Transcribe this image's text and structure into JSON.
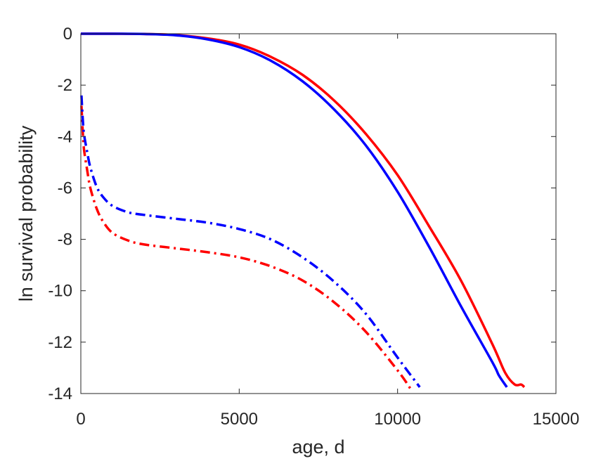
{
  "chart_data": {
    "type": "line",
    "title": "",
    "xlabel": "age, d",
    "ylabel": "ln survival probability",
    "xlim": [
      0,
      15000
    ],
    "ylim": [
      -14,
      0
    ],
    "xticks": [
      0,
      5000,
      10000,
      15000
    ],
    "xtick_labels": [
      "0",
      "5000",
      "10000",
      "15000"
    ],
    "yticks": [
      0,
      -2,
      -4,
      -6,
      -8,
      -10,
      -12,
      -14
    ],
    "ytick_labels": [
      "0",
      "-2",
      "-4",
      "-6",
      "-8",
      "-10",
      "-12",
      "-14"
    ],
    "grid": false,
    "legend": "none",
    "series": [
      {
        "color": "#ff0000",
        "style": "solid",
        "x": [
          0,
          1000,
          2000,
          3000,
          4000,
          5000,
          6000,
          7000,
          8000,
          9000,
          10000,
          11000,
          12000,
          13000,
          13400,
          13700,
          13900,
          14000
        ],
        "y": [
          0,
          0,
          -0.01,
          -0.05,
          -0.18,
          -0.42,
          -0.9,
          -1.6,
          -2.6,
          -3.9,
          -5.5,
          -7.5,
          -9.6,
          -12.1,
          -13.2,
          -13.65,
          -13.65,
          -13.75
        ]
      },
      {
        "color": "#0000ff",
        "style": "solid",
        "x": [
          0,
          1000,
          2000,
          3000,
          4000,
          5000,
          6000,
          7000,
          8000,
          9000,
          10000,
          11000,
          12000,
          13000,
          13200,
          13450
        ],
        "y": [
          0,
          0,
          -0.01,
          -0.06,
          -0.22,
          -0.52,
          -1.05,
          -1.85,
          -2.95,
          -4.35,
          -6.15,
          -8.3,
          -10.6,
          -12.8,
          -13.3,
          -13.75
        ]
      },
      {
        "color": "#ff0000",
        "style": "dashdot",
        "x": [
          20,
          60,
          100,
          200,
          300,
          500,
          700,
          1000,
          1500,
          2000,
          3000,
          4000,
          5000,
          6000,
          7000,
          8000,
          9000,
          10000,
          10400
        ],
        "y": [
          -2.8,
          -3.8,
          -4.5,
          -5.3,
          -6.0,
          -6.8,
          -7.3,
          -7.75,
          -8.05,
          -8.2,
          -8.35,
          -8.5,
          -8.7,
          -9.05,
          -9.6,
          -10.45,
          -11.6,
          -13.1,
          -13.8
        ]
      },
      {
        "color": "#0000ff",
        "style": "dashdot",
        "x": [
          20,
          60,
          100,
          200,
          300,
          500,
          700,
          1000,
          1500,
          2000,
          3000,
          4000,
          5000,
          6000,
          7000,
          8000,
          9000,
          10000,
          10700
        ],
        "y": [
          -2.4,
          -3.3,
          -3.9,
          -4.6,
          -5.2,
          -5.95,
          -6.35,
          -6.7,
          -6.95,
          -7.05,
          -7.2,
          -7.35,
          -7.6,
          -8.0,
          -8.7,
          -9.65,
          -10.9,
          -12.6,
          -13.75
        ]
      }
    ]
  }
}
